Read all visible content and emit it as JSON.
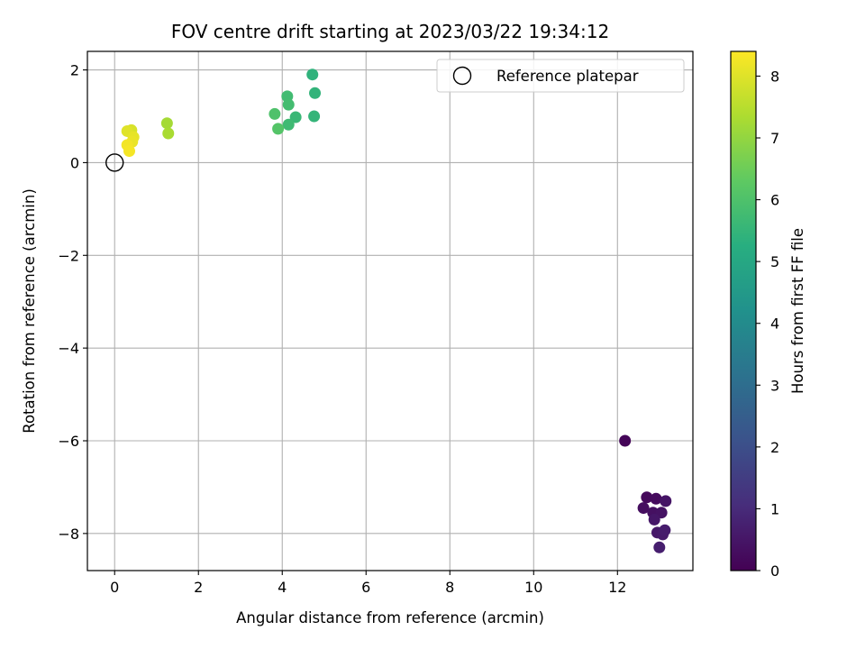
{
  "chart_data": {
    "type": "scatter",
    "title": "FOV centre drift starting at 2023/03/22 19:34:12",
    "xlabel": "Angular distance from reference (arcmin)",
    "ylabel": "Rotation from reference (arcmin)",
    "xlim": [
      -0.65,
      13.8
    ],
    "ylim": [
      -8.8,
      2.4
    ],
    "xticks": [
      0,
      2,
      4,
      6,
      8,
      10,
      12
    ],
    "yticks": [
      -8,
      -6,
      -4,
      -2,
      0,
      2
    ],
    "xtick_labels": [
      "0",
      "2",
      "4",
      "6",
      "8",
      "10",
      "12"
    ],
    "ytick_labels": [
      "−8",
      "−6",
      "−4",
      "−2",
      "0",
      "2"
    ],
    "grid": true,
    "legend": {
      "label": "Reference platepar",
      "placement": "top-right"
    },
    "reference_point": {
      "x": 0,
      "y": 0
    },
    "colorbar": {
      "label": "Hours from first FF file",
      "range": [
        0,
        8.4
      ],
      "ticks": [
        0,
        1,
        2,
        3,
        4,
        5,
        6,
        7,
        8
      ],
      "tick_labels": [
        "0",
        "1",
        "2",
        "3",
        "4",
        "5",
        "6",
        "7",
        "8"
      ],
      "colormap": "viridis"
    },
    "points": [
      {
        "x": 12.18,
        "y": -6.0,
        "c": 0.1
      },
      {
        "x": 12.7,
        "y": -7.22,
        "c": 0.2
      },
      {
        "x": 12.92,
        "y": -7.25,
        "c": 0.25
      },
      {
        "x": 12.62,
        "y": -7.45,
        "c": 0.3
      },
      {
        "x": 12.85,
        "y": -7.55,
        "c": 0.35
      },
      {
        "x": 13.05,
        "y": -7.55,
        "c": 0.4
      },
      {
        "x": 13.15,
        "y": -7.3,
        "c": 0.45
      },
      {
        "x": 12.88,
        "y": -7.7,
        "c": 0.5
      },
      {
        "x": 12.95,
        "y": -7.98,
        "c": 0.55
      },
      {
        "x": 13.08,
        "y": -8.02,
        "c": 0.6
      },
      {
        "x": 13.13,
        "y": -7.93,
        "c": 0.65
      },
      {
        "x": 13.0,
        "y": -8.3,
        "c": 0.7
      },
      {
        "x": 4.72,
        "y": 1.9,
        "c": 5.4
      },
      {
        "x": 4.78,
        "y": 1.5,
        "c": 5.45
      },
      {
        "x": 4.76,
        "y": 1.0,
        "c": 5.5
      },
      {
        "x": 4.32,
        "y": 0.98,
        "c": 5.6
      },
      {
        "x": 4.15,
        "y": 0.82,
        "c": 5.7
      },
      {
        "x": 4.12,
        "y": 1.43,
        "c": 5.75
      },
      {
        "x": 4.15,
        "y": 1.25,
        "c": 5.8
      },
      {
        "x": 3.82,
        "y": 1.05,
        "c": 6.0
      },
      {
        "x": 3.9,
        "y": 0.73,
        "c": 6.1
      },
      {
        "x": 1.25,
        "y": 0.85,
        "c": 7.25
      },
      {
        "x": 1.28,
        "y": 0.63,
        "c": 7.3
      },
      {
        "x": 0.4,
        "y": 0.7,
        "c": 7.9
      },
      {
        "x": 0.3,
        "y": 0.68,
        "c": 8.0
      },
      {
        "x": 0.45,
        "y": 0.55,
        "c": 8.1
      },
      {
        "x": 0.42,
        "y": 0.45,
        "c": 8.15
      },
      {
        "x": 0.3,
        "y": 0.38,
        "c": 8.25
      },
      {
        "x": 0.35,
        "y": 0.25,
        "c": 8.3
      }
    ]
  }
}
